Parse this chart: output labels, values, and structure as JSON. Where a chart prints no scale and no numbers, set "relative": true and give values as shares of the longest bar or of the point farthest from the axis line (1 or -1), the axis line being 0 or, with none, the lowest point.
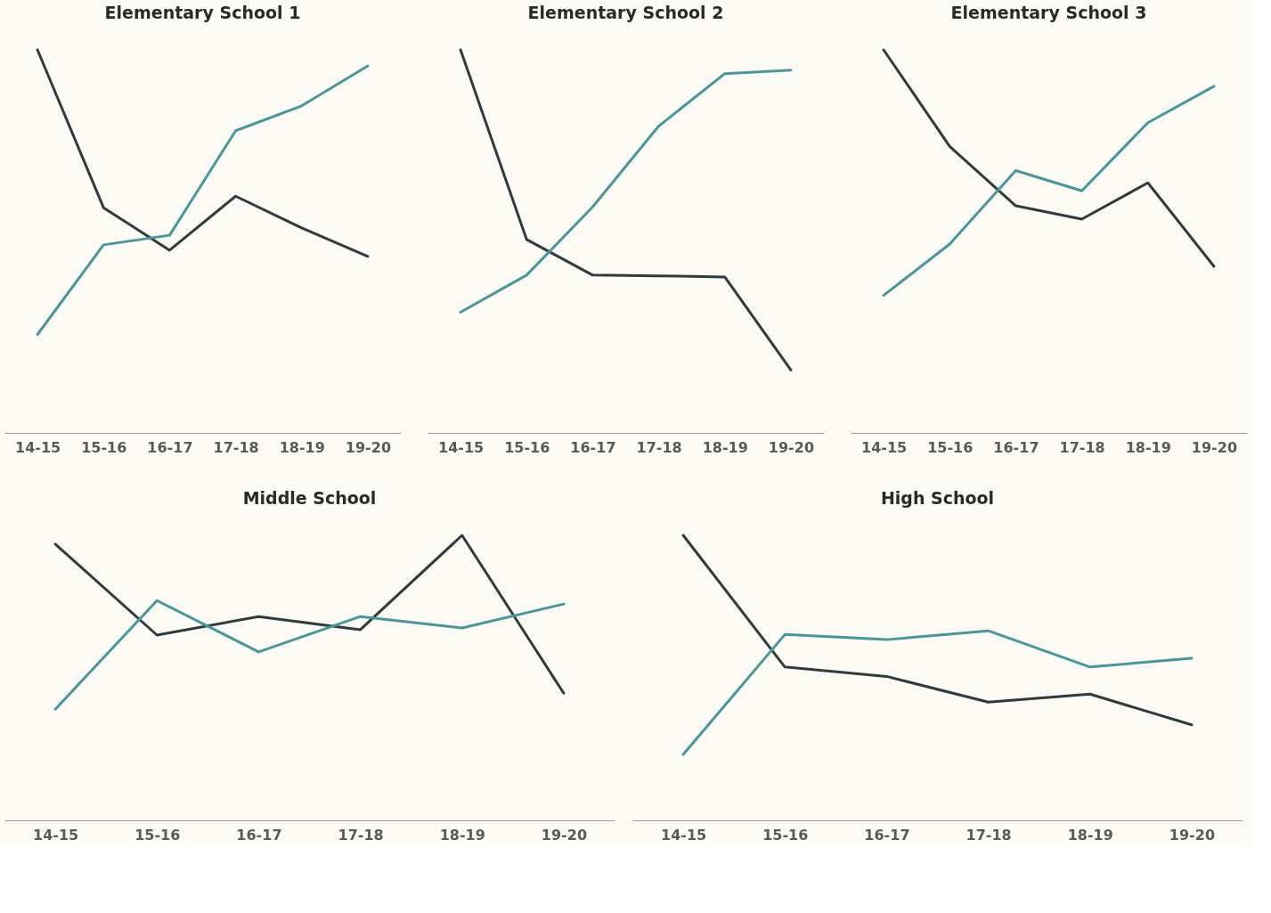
{
  "chart_data": [
    {
      "type": "line",
      "title": "Elementary School 1",
      "relative": true,
      "categories": [
        "14-15",
        "15-16",
        "16-17",
        "17-18",
        "18-19",
        "19-20"
      ],
      "series": [
        {
          "color": "#2f3b3d",
          "values": [
            1,
            0.588,
            0.477,
            0.618,
            0.535,
            0.461
          ]
        },
        {
          "color": "#4a9698",
          "values": [
            0.257,
            0.491,
            0.516,
            0.789,
            0.854,
            0.958
          ]
        }
      ]
    },
    {
      "type": "line",
      "title": "Elementary School 2",
      "relative": true,
      "categories": [
        "14-15",
        "15-16",
        "16-17",
        "17-18",
        "18-19",
        "19-20"
      ],
      "series": [
        {
          "color": "#2f3b3d",
          "values": [
            1,
            0.505,
            0.412,
            0.41,
            0.407,
            0.164
          ]
        },
        {
          "color": "#4a9698",
          "values": [
            0.315,
            0.412,
            0.59,
            0.801,
            0.938,
            0.947
          ]
        }
      ]
    },
    {
      "type": "line",
      "title": "Elementary School 3",
      "relative": true,
      "categories": [
        "14-15",
        "15-16",
        "16-17",
        "17-18",
        "18-19",
        "19-20"
      ],
      "series": [
        {
          "color": "#2f3b3d",
          "values": [
            1,
            0.748,
            0.593,
            0.558,
            0.653,
            0.435
          ]
        },
        {
          "color": "#4a9698",
          "values": [
            0.359,
            0.493,
            0.685,
            0.632,
            0.81,
            0.905
          ]
        }
      ]
    },
    {
      "type": "line",
      "title": "Middle School",
      "relative": true,
      "categories": [
        "14-15",
        "15-16",
        "16-17",
        "17-18",
        "18-19",
        "19-20"
      ],
      "series": [
        {
          "color": "#2f3b3d",
          "values": [
            0.969,
            0.65,
            0.715,
            0.669,
            1,
            0.446
          ]
        },
        {
          "color": "#4a9698",
          "values": [
            0.39,
            0.771,
            0.591,
            0.715,
            0.675,
            0.759
          ]
        }
      ]
    },
    {
      "type": "line",
      "title": "High School",
      "relative": true,
      "categories": [
        "14-15",
        "15-16",
        "16-17",
        "17-18",
        "18-19",
        "19-20"
      ],
      "series": [
        {
          "color": "#2f3b3d",
          "values": [
            1,
            0.538,
            0.505,
            0.415,
            0.443,
            0.335
          ]
        },
        {
          "color": "#4a9698",
          "values": [
            0.231,
            0.652,
            0.634,
            0.665,
            0.538,
            0.569
          ]
        }
      ]
    }
  ]
}
